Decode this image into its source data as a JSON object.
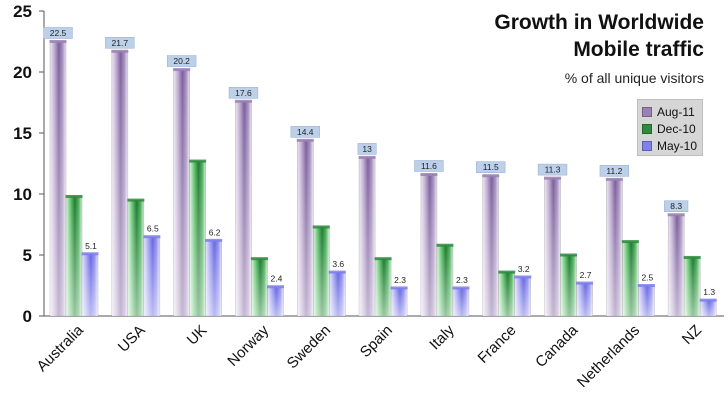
{
  "chart_data": {
    "type": "bar",
    "title_line1": "Growth in Worldwide",
    "title_line2": "Mobile traffic",
    "subtitle": "% of all unique visitors",
    "ylim": [
      0,
      25
    ],
    "yticks": [
      "0",
      "5",
      "10",
      "15",
      "20",
      "25"
    ],
    "ytick_values": [
      0,
      5,
      10,
      15,
      20,
      25
    ],
    "categories": [
      "Australia",
      "USA",
      "UK",
      "Norway",
      "Sweden",
      "Spain",
      "Italy",
      "France",
      "Canada",
      "Netherlands",
      "NZ"
    ],
    "series": [
      {
        "name": "Aug-11",
        "color": "#9a80b4",
        "values": [
          22.5,
          21.7,
          20.2,
          17.6,
          14.4,
          13,
          11.6,
          11.5,
          11.3,
          11.2,
          8.3
        ],
        "labels": [
          "22.5",
          "21.7",
          "20.2",
          "17.6",
          "14.4",
          "13",
          "11.6",
          "11.5",
          "11.3",
          "11.2",
          "8.3"
        ]
      },
      {
        "name": "Dec-10",
        "color": "#2e8b3e",
        "values": [
          9.8,
          9.5,
          12.7,
          4.7,
          7.3,
          4.7,
          5.8,
          3.6,
          5,
          6.1,
          4.8
        ]
      },
      {
        "name": "May-10",
        "color": "#7f7fee",
        "values": [
          5.1,
          6.5,
          6.2,
          2.4,
          3.6,
          2.3,
          2.3,
          3.2,
          2.7,
          2.5,
          1.3
        ],
        "labels": [
          "5.1",
          "6.5",
          "6.2",
          "2.4",
          "3.6",
          "2.3",
          "2.3",
          "3.2",
          "2.7",
          "2.5",
          "1.3"
        ]
      }
    ],
    "legend": [
      "Aug-11",
      "Dec-10",
      "May-10"
    ],
    "legend_position": "top-right"
  }
}
